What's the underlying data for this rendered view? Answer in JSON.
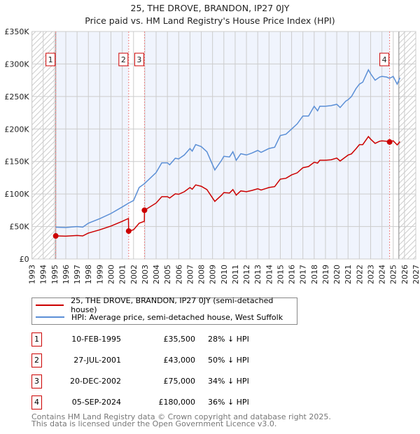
{
  "chart_data": {
    "type": "line",
    "title": "25, THE DROVE, BRANDON, IP27 0JY",
    "subtitle": "Price paid vs. HM Land Registry's House Price Index (HPI)",
    "xlim": [
      1993,
      2027
    ],
    "ylim": [
      0,
      350000
    ],
    "x_ticks": [
      "1993",
      "1994",
      "1995",
      "1996",
      "1997",
      "1998",
      "1999",
      "2000",
      "2001",
      "2002",
      "2003",
      "2004",
      "2005",
      "2006",
      "2007",
      "2008",
      "2009",
      "2010",
      "2011",
      "2012",
      "2013",
      "2014",
      "2015",
      "2016",
      "2017",
      "2018",
      "2019",
      "2020",
      "2021",
      "2022",
      "2023",
      "2024",
      "2025",
      "2026",
      "2027"
    ],
    "y_ticks": [
      {
        "v": 0,
        "label": "£0"
      },
      {
        "v": 50000,
        "label": "£50K"
      },
      {
        "v": 100000,
        "label": "£100K"
      },
      {
        "v": 150000,
        "label": "£150K"
      },
      {
        "v": 200000,
        "label": "£200K"
      },
      {
        "v": 250000,
        "label": "£250K"
      },
      {
        "v": 300000,
        "label": "£300K"
      },
      {
        "v": 350000,
        "label": "£350K"
      }
    ],
    "grid": true,
    "data_end": 2025.5,
    "series": [
      {
        "name": "25, THE DROVE, BRANDON, IP27 0JY (semi-detached house)",
        "color": "#cc0000",
        "x": [
          1995.11,
          1996,
          1997,
          1997.5,
          1998,
          1999,
          2000,
          2001,
          2001.55,
          2001.57,
          2002,
          2002.5,
          2002.96,
          2002.97,
          2004,
          2004.5,
          2005,
          2005.2,
          2005.7,
          2006,
          2006.5,
          2007,
          2007.2,
          2007.5,
          2008,
          2008.5,
          2009.2,
          2009.8,
          2010,
          2010.5,
          2010.8,
          2011.1,
          2011.5,
          2012,
          2012.5,
          2013,
          2013.3,
          2014,
          2014.5,
          2015,
          2015.5,
          2016,
          2016.5,
          2017,
          2017.5,
          2018,
          2018.3,
          2018.5,
          2019,
          2019.5,
          2020,
          2020.3,
          2020.8,
          2021,
          2021.3,
          2021.7,
          2022,
          2022.3,
          2022.8,
          2023,
          2023.4,
          2023.8,
          2024,
          2024.4,
          2024.68,
          2025,
          2025.35,
          2025.6
        ],
        "y": [
          35500,
          35100,
          36200,
          35500,
          39800,
          44900,
          50700,
          57900,
          62300,
          43000,
          45000,
          55000,
          58000,
          75000,
          86000,
          95800,
          95800,
          93800,
          100300,
          99600,
          103500,
          110000,
          107400,
          113900,
          111900,
          106800,
          88600,
          98300,
          102200,
          101600,
          106800,
          98300,
          104800,
          103500,
          105500,
          108000,
          106100,
          110000,
          111300,
          122900,
          124200,
          129400,
          132600,
          140400,
          142300,
          148800,
          147500,
          152000,
          152000,
          152700,
          155300,
          150800,
          157200,
          159800,
          161800,
          169500,
          176000,
          176000,
          188300,
          184400,
          177900,
          181200,
          181800,
          181200,
          180000,
          181900,
          175500,
          180600
        ]
      },
      {
        "name": "HPI: Average price, semi-detached house, West Suffolk",
        "color": "#5b8fd6",
        "x": [
          1995.11,
          1996,
          1997,
          1997.5,
          1998,
          1999,
          2000,
          2001,
          2001.57,
          2002,
          2002.5,
          2002.97,
          2004,
          2004.5,
          2005,
          2005.2,
          2005.7,
          2006,
          2006.5,
          2007,
          2007.2,
          2007.5,
          2008,
          2008.5,
          2009.2,
          2009.8,
          2010,
          2010.5,
          2010.8,
          2011.1,
          2011.5,
          2012,
          2012.5,
          2013,
          2013.3,
          2014,
          2014.5,
          2015,
          2015.5,
          2016,
          2016.5,
          2017,
          2017.5,
          2018,
          2018.3,
          2018.5,
          2019,
          2019.5,
          2020,
          2020.3,
          2020.8,
          2021,
          2021.3,
          2021.7,
          2022,
          2022.3,
          2022.8,
          2023,
          2023.4,
          2023.8,
          2024,
          2024.4,
          2024.68,
          2025,
          2025.35,
          2025.6
        ],
        "y": [
          49000,
          48500,
          50000,
          49000,
          55000,
          62000,
          70000,
          80000,
          86000,
          90000,
          110000,
          116000,
          133000,
          148000,
          148000,
          145000,
          155000,
          154000,
          160000,
          170000,
          166000,
          176000,
          173000,
          165000,
          137000,
          152000,
          158000,
          157000,
          165000,
          152000,
          162000,
          160000,
          163000,
          167000,
          164000,
          170000,
          172000,
          190000,
          192000,
          200000,
          208000,
          220000,
          220000,
          235000,
          228000,
          235000,
          235000,
          236000,
          238000,
          233000,
          243000,
          245000,
          250000,
          262000,
          269000,
          272000,
          291000,
          285000,
          275000,
          280000,
          281000,
          280000,
          278000,
          281000,
          269000,
          279000
        ]
      }
    ],
    "sales": [
      {
        "n": "1",
        "x": 1995.11,
        "date": "10-FEB-1995",
        "price": "£35,500",
        "value": 35500,
        "hpi": "28% ↓ HPI"
      },
      {
        "n": "2",
        "x": 2001.57,
        "date": "27-JUL-2001",
        "price": "£43,000",
        "value": 43000,
        "hpi": "50% ↓ HPI"
      },
      {
        "n": "3",
        "x": 2002.97,
        "date": "20-DEC-2002",
        "price": "£75,000",
        "value": 75000,
        "hpi": "34% ↓ HPI"
      },
      {
        "n": "4",
        "x": 2024.68,
        "date": "05-SEP-2024",
        "price": "£180,000",
        "value": 180000,
        "hpi": "36% ↓ HPI"
      }
    ]
  },
  "footer": {
    "line1": "Contains HM Land Registry data © Crown copyright and database right 2025.",
    "line2": "This data is licensed under the Open Government Licence v3.0."
  }
}
